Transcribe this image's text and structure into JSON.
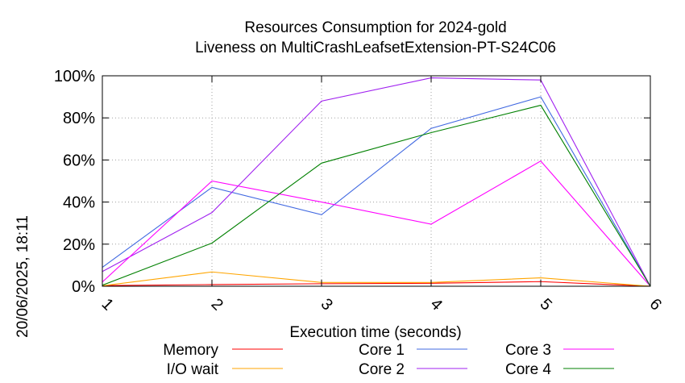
{
  "chart_data": {
    "type": "line",
    "title": "Resources Consumption for 2024-gold",
    "subtitle": "Liveness on MultiCrashLeafsetExtension-PT-S24C06",
    "xlabel": "Execution time (seconds)",
    "ylabel": "",
    "side_label": "20/06/2025, 18:11",
    "x": [
      1,
      2,
      3,
      4,
      5,
      6
    ],
    "xlim": [
      1,
      6
    ],
    "ylim": [
      0,
      100
    ],
    "x_ticks": [
      "1",
      "2",
      "3",
      "4",
      "5",
      "6"
    ],
    "y_ticks": [
      "0%",
      "20%",
      "40%",
      "60%",
      "80%",
      "100%"
    ],
    "grid": true,
    "legend_position": "bottom",
    "series": [
      {
        "name": "Memory",
        "color": "#ff0000",
        "values": [
          0.3,
          0.8,
          1.2,
          1.4,
          2.2,
          0
        ]
      },
      {
        "name": "I/O wait",
        "color": "#ffa500",
        "values": [
          0.2,
          6.8,
          1.8,
          1.8,
          4.0,
          0
        ]
      },
      {
        "name": "Core 1",
        "color": "#4169e1",
        "values": [
          9,
          47,
          34,
          75,
          90,
          0
        ]
      },
      {
        "name": "Core 2",
        "color": "#a020f0",
        "values": [
          7,
          35,
          88,
          99,
          98,
          0
        ]
      },
      {
        "name": "Core 3",
        "color": "#ff00ff",
        "values": [
          2,
          50,
          40,
          29.5,
          59.5,
          0
        ]
      },
      {
        "name": "Core 4",
        "color": "#008000",
        "values": [
          0.5,
          20.5,
          58.5,
          73,
          86,
          0
        ]
      }
    ]
  }
}
